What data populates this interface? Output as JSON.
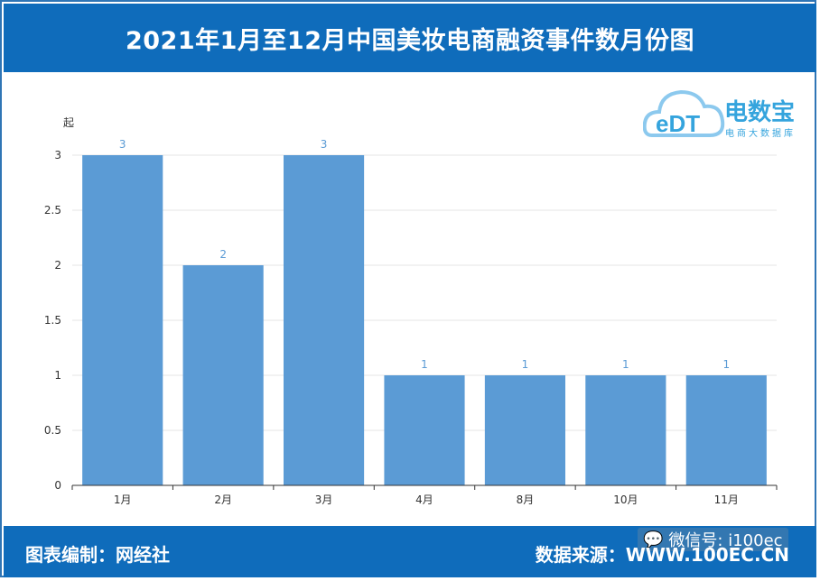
{
  "header": {
    "title": "2021年1月至12月中国美妆电商融资事件数月份图"
  },
  "footer": {
    "left_label": "图表编制：网经社",
    "right_label": "数据来源：WWW.100EC.CN",
    "wechat_label": "微信号: i100ec"
  },
  "logo": {
    "name": "电数宝",
    "subtitle": "电商大数据库",
    "mark": "eDT",
    "color": "#35a4dd"
  },
  "colors": {
    "brand": "#0f6cbb",
    "bar": "#5b9bd5",
    "label": "#5b9bd5"
  },
  "chart_data": {
    "type": "bar",
    "categories": [
      "1月",
      "2月",
      "3月",
      "4月",
      "8月",
      "10月",
      "11月"
    ],
    "values": [
      3,
      2,
      3,
      1,
      1,
      1,
      1
    ],
    "ylabel": "起",
    "ylim": [
      0,
      3
    ],
    "yticks": [
      "0",
      "0.5",
      "1",
      "1.5",
      "2",
      "2.5",
      "3"
    ],
    "grid": true,
    "data_labels": true
  }
}
